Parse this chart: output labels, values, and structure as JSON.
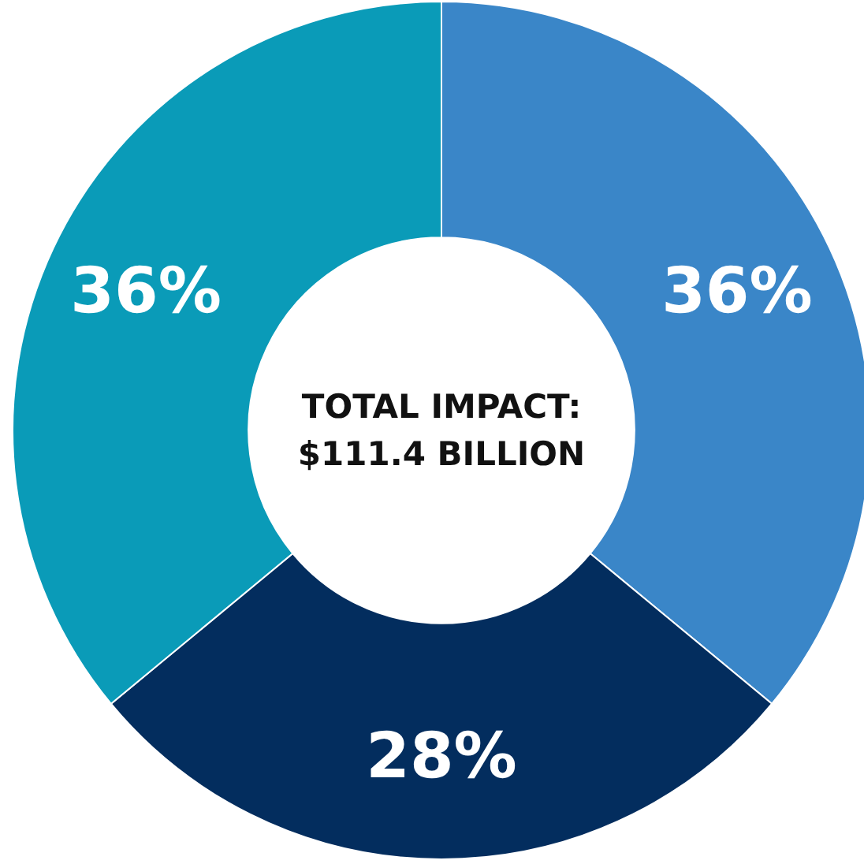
{
  "chart_data": {
    "type": "donut",
    "categories": [
      null,
      null,
      null
    ],
    "values": [
      36,
      28,
      36
    ],
    "colors": [
      "#3a86c8",
      "#032d5e",
      "#0a9bb8"
    ],
    "value_labels": [
      "36%",
      "28%",
      "36%"
    ],
    "annotations": [
      "TOTAL IMPACT:",
      "$111.4 BILLION"
    ]
  }
}
